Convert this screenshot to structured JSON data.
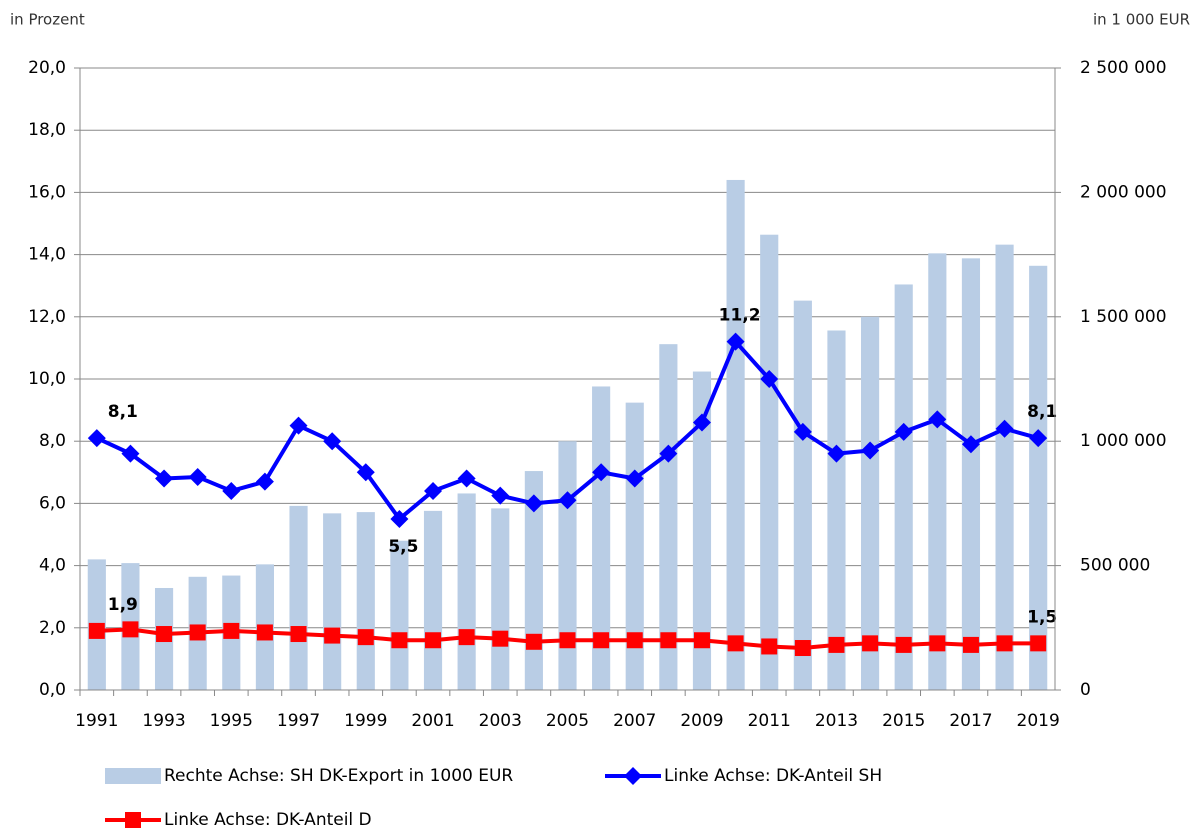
{
  "chart_data": {
    "type": "bar",
    "y_label": "in Prozent",
    "y2_label": "in 1 000 EUR",
    "categories": [
      1991,
      null,
      1993,
      null,
      1995,
      null,
      1997,
      null,
      1999,
      null,
      2001,
      null,
      2003,
      null,
      2005,
      null,
      2007,
      null,
      2009,
      null,
      2011,
      null,
      2013,
      null,
      2015,
      null,
      2017,
      null,
      2019
    ],
    "series": [
      {
        "name": "Rechte Achse: SH DK-Export in 1000 EUR",
        "type": "bar",
        "axis": "y2",
        "color": "#b9cde5",
        "values": [
          525000,
          510000,
          410000,
          455000,
          460000,
          505000,
          740000,
          710000,
          715000,
          600000,
          720000,
          790000,
          730000,
          880000,
          1000000,
          1220000,
          1155000,
          1390000,
          1280000,
          2050000,
          1830000,
          1565000,
          1445000,
          1500000,
          1630000,
          1755000,
          1735000,
          1790000,
          1705000
        ]
      },
      {
        "name": "Linke Achse: DK-Anteil SH",
        "type": "line",
        "marker": "diamond",
        "color": "#0000ff",
        "values": [
          8.1,
          7.6,
          6.8,
          6.85,
          6.4,
          6.7,
          8.5,
          8.0,
          7.0,
          5.5,
          6.4,
          6.8,
          6.25,
          6.0,
          6.1,
          7.0,
          6.8,
          7.6,
          8.6,
          11.2,
          10.0,
          8.3,
          7.6,
          7.7,
          8.3,
          8.7,
          7.9,
          8.4,
          8.1
        ],
        "value_labels": [
          "8,1",
          null,
          null,
          null,
          null,
          null,
          null,
          null,
          null,
          "5,5",
          null,
          null,
          null,
          null,
          null,
          null,
          null,
          null,
          null,
          "11,2",
          null,
          null,
          null,
          null,
          null,
          null,
          null,
          null,
          "8,1"
        ]
      },
      {
        "name": "Linke Achse: DK-Anteil D",
        "type": "line",
        "marker": "square",
        "color": "#ff0000",
        "values": [
          1.9,
          1.95,
          1.8,
          1.85,
          1.9,
          1.85,
          1.8,
          1.75,
          1.7,
          1.6,
          1.6,
          1.7,
          1.65,
          1.55,
          1.6,
          1.6,
          1.6,
          1.6,
          1.6,
          1.5,
          1.4,
          1.35,
          1.45,
          1.5,
          1.45,
          1.5,
          1.45,
          1.5,
          1.5
        ],
        "value_labels": [
          "1,9",
          null,
          null,
          null,
          null,
          null,
          null,
          null,
          null,
          null,
          null,
          null,
          null,
          null,
          null,
          null,
          null,
          null,
          null,
          null,
          null,
          null,
          null,
          null,
          null,
          null,
          null,
          null,
          "1,5"
        ]
      }
    ],
    "ylim": [
      0,
      20
    ],
    "yticks": [
      {
        "value": 0,
        "label": "0,0"
      },
      {
        "value": 2,
        "label": "2,0"
      },
      {
        "value": 4,
        "label": "4,0"
      },
      {
        "value": 6,
        "label": "6,0"
      },
      {
        "value": 8,
        "label": "8,0"
      },
      {
        "value": 10,
        "label": "10,0"
      },
      {
        "value": 12,
        "label": "12,0"
      },
      {
        "value": 14,
        "label": "14,0"
      },
      {
        "value": 16,
        "label": "16,0"
      },
      {
        "value": 18,
        "label": "18,0"
      },
      {
        "value": 20,
        "label": "20,0"
      }
    ],
    "y2lim": [
      0,
      2500000
    ],
    "y2ticks": [
      0,
      {
        "value": 500000,
        "label": "500 000"
      },
      {
        "value": 1000000,
        "label": "1 000 000"
      },
      {
        "value": 1500000,
        "label": "1 500 000"
      },
      {
        "value": 2000000,
        "label": "2 000 000"
      },
      {
        "value": 2500000,
        "label": "2 500 000"
      }
    ],
    "grid": true,
    "legend": "bottom"
  }
}
